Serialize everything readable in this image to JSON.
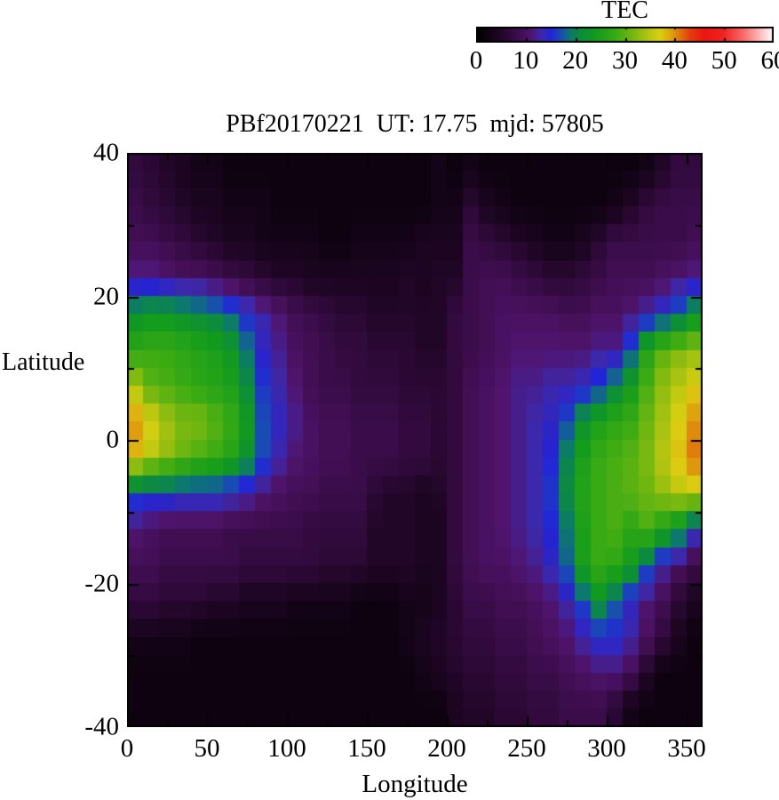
{
  "figure": {
    "title": "PBf20170221  UT: 17.75  mjd: 57805",
    "colorbar": {
      "title": "TEC",
      "tick_labels": [
        "0",
        "10",
        "20",
        "30",
        "40",
        "50",
        "60"
      ],
      "tick_values": [
        0,
        10,
        20,
        30,
        40,
        50,
        60
      ],
      "minor_tick_values": [
        10,
        20,
        30,
        40,
        50
      ],
      "min": 0,
      "max": 60
    },
    "x_axis": {
      "label": "Longitude",
      "tick_labels": [
        "0",
        "50",
        "100",
        "150",
        "200",
        "250",
        "300",
        "350"
      ],
      "tick_values": [
        0,
        50,
        100,
        150,
        200,
        250,
        300,
        350
      ],
      "minor_tick_values": [
        25,
        75,
        125,
        175,
        225,
        275,
        325
      ],
      "range": [
        0,
        360
      ]
    },
    "y_axis": {
      "label": "Latitude",
      "tick_labels": [
        "40",
        "20",
        "0",
        "-20",
        "-40"
      ],
      "tick_values": [
        40,
        20,
        0,
        -20,
        -40
      ],
      "minor_tick_values": [
        30,
        10,
        -10,
        -30
      ],
      "range": [
        -40,
        40
      ]
    }
  },
  "chart_data": {
    "type": "heatmap",
    "title": "PBf20170221  UT: 17.75  mjd: 57805",
    "xlabel": "Longitude",
    "ylabel": "Latitude",
    "value_label": "TEC",
    "xlim": [
      0,
      360
    ],
    "ylim": [
      -40,
      40
    ],
    "zlim": [
      0,
      60
    ],
    "legend_position": "top-right-colorbar",
    "grid": false,
    "lon_bin_centers": [
      5,
      15,
      25,
      35,
      45,
      55,
      65,
      75,
      85,
      95,
      105,
      115,
      125,
      135,
      145,
      155,
      165,
      175,
      185,
      195,
      205,
      215,
      225,
      235,
      245,
      255,
      265,
      275,
      285,
      295,
      305,
      315,
      325,
      335,
      345,
      355
    ],
    "lat_bin_centers": [
      37.5,
      32.5,
      27.5,
      22.5,
      17.5,
      12.5,
      7.5,
      2.5,
      -2.5,
      -7.5,
      -12.5,
      -17.5,
      -22.5,
      -27.5,
      -32.5,
      -37.5
    ],
    "values": [
      [
        7,
        6,
        5,
        4,
        3,
        3,
        2,
        2,
        2,
        2,
        2,
        2,
        2,
        2,
        2,
        2,
        2,
        2,
        2,
        3,
        2,
        3,
        2,
        2,
        2,
        2,
        2,
        2,
        2,
        2,
        2,
        2,
        3,
        5,
        7,
        7
      ],
      [
        8,
        7,
        6,
        5,
        4,
        4,
        3,
        3,
        3,
        2,
        2,
        2,
        2,
        2,
        2,
        2,
        2,
        2,
        2,
        3,
        3,
        6,
        4,
        3,
        2,
        2,
        2,
        2,
        2,
        2,
        3,
        5,
        7,
        8,
        8,
        8
      ],
      [
        9,
        9,
        8,
        7,
        6,
        5,
        4,
        4,
        3,
        3,
        3,
        3,
        2,
        2,
        3,
        3,
        3,
        3,
        4,
        4,
        4,
        8,
        7,
        6,
        5,
        4,
        3,
        3,
        4,
        6,
        8,
        8,
        8,
        8,
        8,
        9
      ],
      [
        12,
        12,
        11,
        10,
        10,
        9,
        8,
        7,
        6,
        5,
        5,
        4,
        4,
        4,
        4,
        4,
        4,
        5,
        4,
        5,
        5,
        8,
        9,
        9,
        8,
        7,
        6,
        6,
        7,
        8,
        9,
        9,
        9,
        10,
        11,
        12
      ],
      [
        22,
        23,
        23,
        22,
        21,
        20,
        18,
        15,
        13,
        11,
        9,
        8,
        7,
        6,
        6,
        5,
        5,
        5,
        5,
        5,
        7,
        8,
        9,
        10,
        10,
        10,
        10,
        9,
        9,
        10,
        10,
        11,
        13,
        15,
        18,
        22
      ],
      [
        27,
        28,
        28,
        27,
        26,
        25,
        23,
        19,
        14,
        12,
        10,
        9,
        8,
        7,
        7,
        6,
        6,
        6,
        5,
        5,
        7,
        8,
        9,
        10,
        11,
        11,
        11,
        11,
        11,
        12,
        12,
        17,
        26,
        30,
        32,
        33
      ],
      [
        34,
        30,
        29,
        28,
        27,
        26,
        25,
        21,
        16,
        13,
        11,
        9,
        8,
        8,
        7,
        7,
        7,
        6,
        6,
        6,
        7,
        9,
        10,
        11,
        12,
        12,
        13,
        13,
        14,
        16,
        20,
        24,
        29,
        33,
        35,
        37
      ],
      [
        40,
        37,
        34,
        32,
        32,
        30,
        28,
        24,
        17,
        14,
        12,
        10,
        9,
        9,
        8,
        8,
        8,
        7,
        7,
        6,
        7,
        9,
        10,
        11,
        12,
        13,
        14,
        17,
        22,
        25,
        27,
        28,
        31,
        34,
        37,
        40
      ],
      [
        38,
        35,
        33,
        31,
        29,
        28,
        26,
        22,
        17,
        13,
        11,
        10,
        9,
        9,
        8,
        8,
        8,
        7,
        7,
        6,
        7,
        9,
        10,
        11,
        12,
        13,
        15,
        20,
        25,
        28,
        29,
        30,
        32,
        35,
        38,
        41
      ],
      [
        17,
        16,
        16,
        15,
        15,
        15,
        14,
        13,
        11,
        10,
        9,
        9,
        8,
        8,
        8,
        6,
        5,
        5,
        4,
        5,
        7,
        9,
        10,
        11,
        12,
        13,
        16,
        21,
        26,
        28,
        29,
        30,
        31,
        33,
        35,
        36
      ],
      [
        11,
        10,
        9,
        9,
        9,
        9,
        8,
        8,
        8,
        8,
        8,
        7,
        7,
        7,
        7,
        5,
        5,
        5,
        4,
        4,
        7,
        9,
        10,
        11,
        12,
        13,
        15,
        19,
        25,
        28,
        29,
        27,
        29,
        26,
        22,
        15
      ],
      [
        9,
        9,
        8,
        8,
        8,
        8,
        8,
        7,
        7,
        7,
        7,
        7,
        6,
        6,
        6,
        5,
        5,
        5,
        4,
        4,
        7,
        9,
        10,
        10,
        11,
        12,
        14,
        18,
        25,
        28,
        27,
        24,
        18,
        13,
        10,
        8
      ],
      [
        7,
        7,
        6,
        6,
        6,
        5,
        5,
        4,
        4,
        4,
        3,
        3,
        3,
        3,
        2,
        2,
        2,
        3,
        3,
        4,
        6,
        8,
        8,
        9,
        9,
        10,
        11,
        13,
        17,
        22,
        18,
        14,
        11,
        9,
        6,
        4
      ],
      [
        3,
        3,
        3,
        3,
        2,
        2,
        2,
        2,
        2,
        2,
        2,
        2,
        2,
        2,
        2,
        2,
        2,
        3,
        4,
        5,
        6,
        7,
        7,
        8,
        8,
        9,
        10,
        11,
        13,
        15,
        15,
        13,
        10,
        7,
        4,
        2
      ],
      [
        2,
        2,
        2,
        2,
        2,
        2,
        2,
        2,
        2,
        2,
        2,
        2,
        2,
        2,
        2,
        2,
        2,
        2,
        3,
        4,
        5,
        6,
        6,
        7,
        7,
        8,
        8,
        9,
        10,
        11,
        11,
        9,
        5,
        2,
        2,
        2
      ],
      [
        2,
        2,
        2,
        2,
        2,
        2,
        2,
        2,
        2,
        2,
        2,
        2,
        2,
        2,
        2,
        2,
        2,
        2,
        2,
        2,
        4,
        5,
        5,
        6,
        6,
        7,
        7,
        8,
        8,
        8,
        6,
        3,
        2,
        2,
        2,
        2
      ]
    ],
    "colormap_stops": [
      [
        0,
        0,
        0,
        0
      ],
      [
        5,
        34,
        6,
        40
      ],
      [
        9,
        66,
        14,
        84
      ],
      [
        11,
        80,
        20,
        110
      ],
      [
        13,
        60,
        40,
        170
      ],
      [
        15,
        35,
        35,
        215
      ],
      [
        17,
        25,
        75,
        180
      ],
      [
        19,
        12,
        120,
        110
      ],
      [
        21,
        12,
        140,
        60
      ],
      [
        24,
        18,
        155,
        28
      ],
      [
        28,
        55,
        170,
        20
      ],
      [
        32,
        125,
        185,
        16
      ],
      [
        35,
        185,
        198,
        16
      ],
      [
        37,
        218,
        208,
        18
      ],
      [
        39,
        222,
        170,
        14
      ],
      [
        41,
        224,
        120,
        12
      ],
      [
        43,
        228,
        65,
        14
      ],
      [
        46,
        234,
        22,
        16
      ],
      [
        50,
        240,
        35,
        35
      ],
      [
        54,
        248,
        108,
        108
      ],
      [
        57,
        252,
        178,
        178
      ],
      [
        60,
        255,
        255,
        255
      ]
    ]
  }
}
